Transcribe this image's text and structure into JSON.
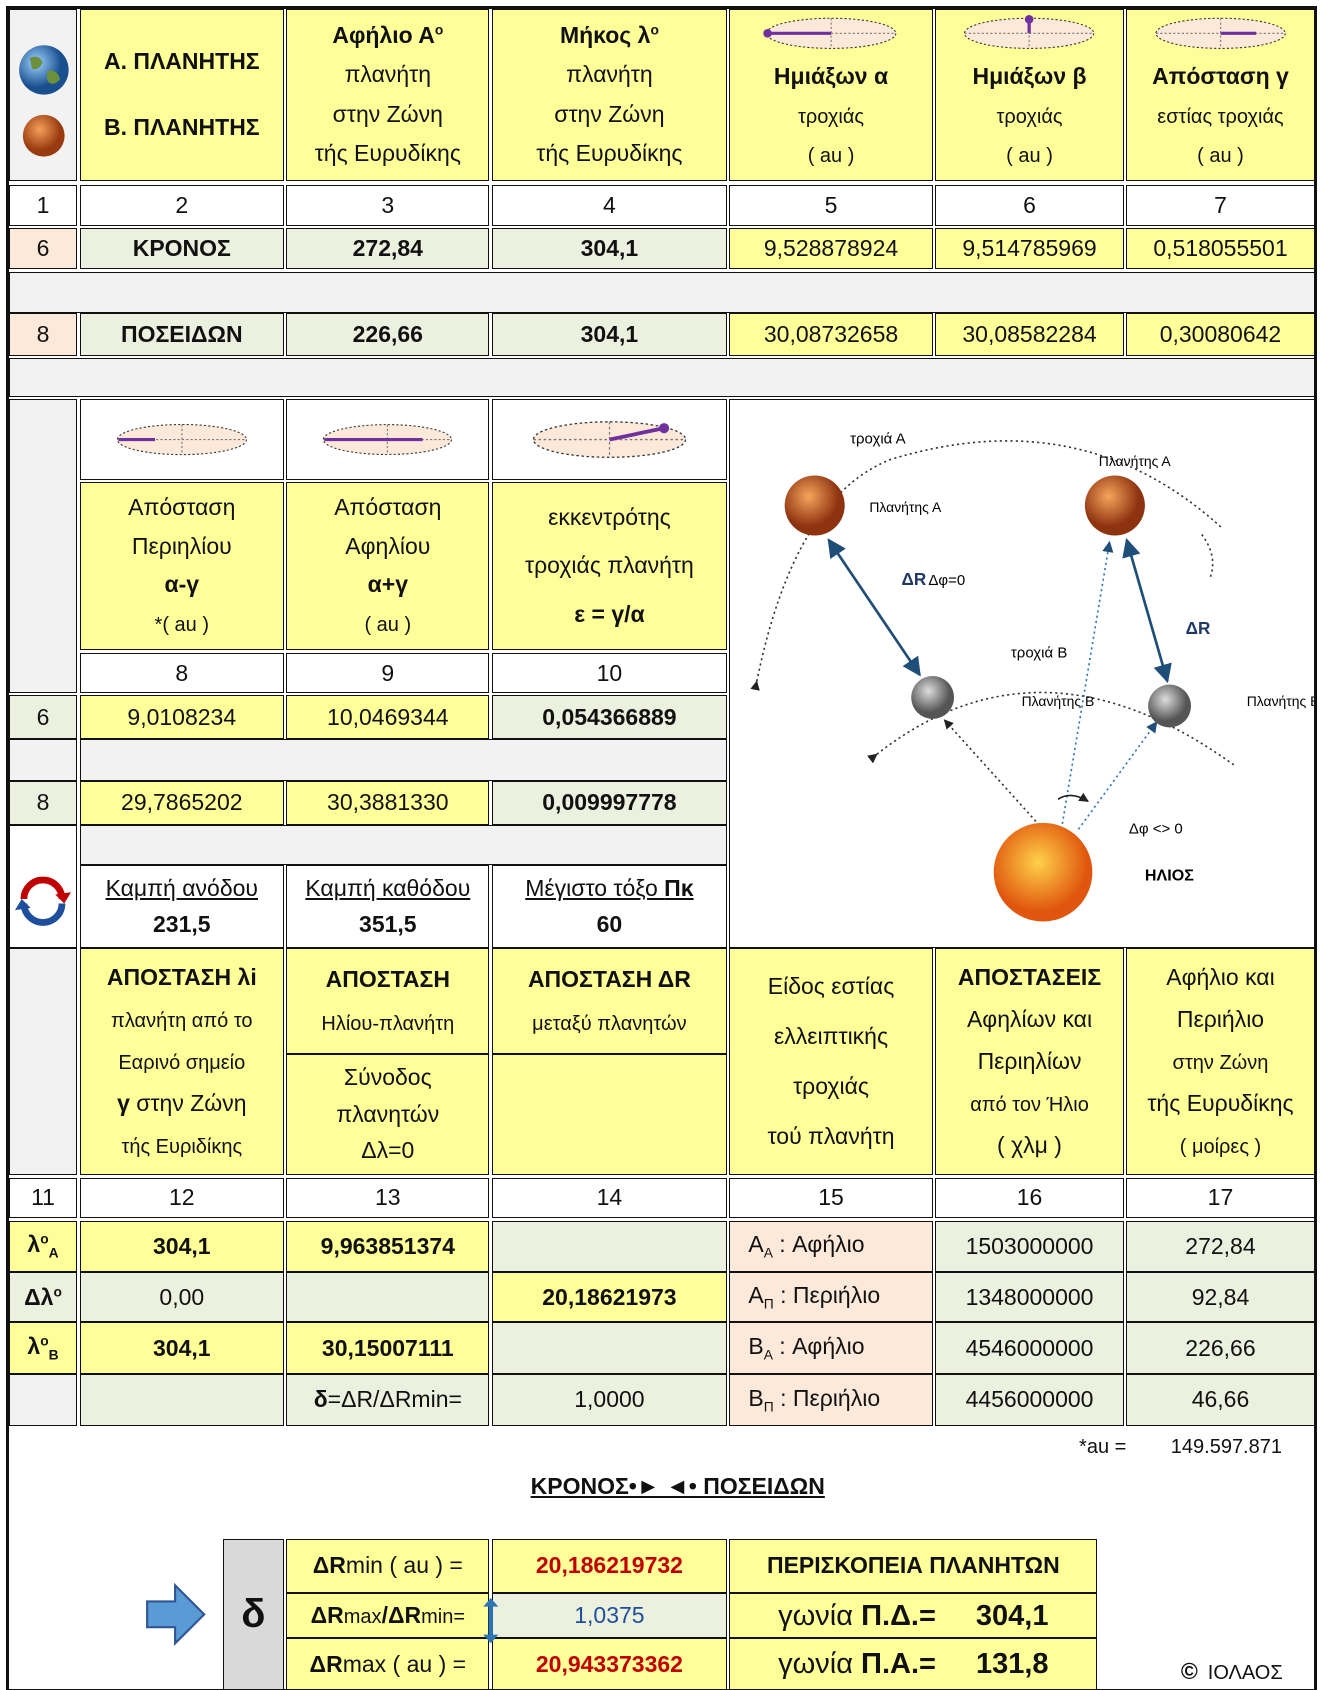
{
  "header": {
    "planet_labels": [
      "Α. ΠΛΑΝΗΤΗΣ",
      "Β. ΠΛΑΝΗΤΗΣ"
    ],
    "columns": [
      {
        "title": "Αφήλιο Α",
        "sup": "o",
        "lines": [
          "πλανήτη",
          "στην Ζώνη",
          "τής Ευρυδίκης"
        ]
      },
      {
        "title": "Μήκος λ",
        "sup": "o",
        "lines": [
          "πλανήτη",
          "στην Ζώνη",
          "τής Ευρυδίκης"
        ]
      },
      {
        "title": "Ημιάξων α",
        "lines": [
          "τροχιάς",
          "( au )"
        ]
      },
      {
        "title": "Ημιάξων β",
        "lines": [
          "τροχιάς",
          "( au )"
        ]
      },
      {
        "title": "Απόσταση γ",
        "lines": [
          "εστίας τροχιάς",
          "( au )"
        ]
      }
    ],
    "column_numbers": [
      "1",
      "2",
      "3",
      "4",
      "5",
      "6",
      "7"
    ]
  },
  "planets": [
    {
      "index": "6",
      "name": "ΚΡΟΝΟΣ",
      "values": [
        "272,84",
        "304,1",
        "9,528878924",
        "9,514785969",
        "0,518055501"
      ]
    },
    {
      "index": "8",
      "name": "ΠΟΣΕΙΔΩΝ",
      "values": [
        "226,66",
        "304,1",
        "30,08732658",
        "30,08582284",
        "0,30080642"
      ]
    }
  ],
  "orbit": {
    "columns": [
      [
        "Απόσταση",
        "Περιηλίου",
        "α-γ",
        "*( au )"
      ],
      [
        "Απόσταση",
        "Αφηλίου",
        "α+γ",
        "( au )"
      ],
      [
        "εκκεντρότης",
        "τροχιάς πλανήτη",
        "ε = γ/α"
      ]
    ],
    "column_numbers": [
      "8",
      "9",
      "10"
    ],
    "rows": [
      {
        "index": "6",
        "values": [
          "9,0108234",
          "10,0469344",
          "0,054366889"
        ]
      },
      {
        "index": "8",
        "values": [
          "29,7865202",
          "30,3881330",
          "0,009997778"
        ]
      }
    ],
    "stations": [
      {
        "label": "Καμπή ανόδου",
        "value": "231,5"
      },
      {
        "label": "Καμπή καθόδου",
        "value": "351,5"
      },
      {
        "label": "Μέγιστο τόξο ",
        "label_bold": "Πκ",
        "value": "60"
      }
    ]
  },
  "diagram": {
    "orbit_a": "τροχιά Α",
    "planet_a_1": "Πλανήτης Α",
    "planet_a_2": "Πλανήτης Α",
    "delta_r_1": "ΔR",
    "delta_phi_zero": "Δφ=0",
    "orbit_b": "τροχιά Β",
    "delta_r_2": "ΔR",
    "planet_b_1": "Πλανήτης Β",
    "planet_b_2": "Πλανήτης Β",
    "delta_phi_nonzero": "Δφ <> 0",
    "sun": "ΗΛΙΟΣ"
  },
  "distances": {
    "columns": [
      [
        "ΑΠΟΣΤΑΣΗ λi",
        "πλανήτη από το",
        "Εαρινό σημείο",
        "γ",
        " στην Ζώνη",
        "τής Ευριδίκης"
      ],
      [
        "ΑΠΟΣΤΑΣΗ",
        "Ηλίου-πλανήτη",
        "Σύνοδος",
        "πλανητών",
        "Δλ=0"
      ],
      [
        "ΑΠΟΣΤΑΣΗ ΔR",
        "μεταξύ πλανητών"
      ],
      [
        "Είδος εστίας",
        "ελλειπτικής",
        "τροχιάς",
        "τού πλανήτη"
      ],
      [
        "ΑΠΟΣΤΑΣΕΙΣ",
        "Αφηλίων και",
        "Περιηλίων",
        "από τον Ήλιο",
        "( χλμ )"
      ],
      [
        "Αφήλιο και",
        "Περιήλιο",
        "στην Ζώνη",
        "τής Ευρυδίκης",
        "( μοίρες )"
      ]
    ],
    "column_numbers": [
      "11",
      "12",
      "13",
      "14",
      "15",
      "16",
      "17"
    ],
    "rows": [
      {
        "label": [
          "λ",
          "o",
          "A"
        ],
        "longitude": "304,1",
        "sun_distance": "9,963851374",
        "focus": [
          "A",
          "A",
          " : Αφήλιο"
        ],
        "km": "1503000000",
        "degrees": "272,84"
      },
      {
        "label": [
          "Δλ",
          "o"
        ],
        "longitude": "0,00",
        "planet_distance": "20,18621973",
        "focus": [
          "A",
          "Π",
          " : Περιήλιο"
        ],
        "km": "1348000000",
        "degrees": "92,84"
      },
      {
        "label": [
          "λ",
          "o",
          "B"
        ],
        "longitude": "304,1",
        "sun_distance": "30,15007111",
        "focus": [
          "B",
          "A",
          " : Αφήλιο"
        ],
        "km": "4546000000",
        "degrees": "226,66"
      },
      {
        "ratio": [
          "δ",
          "=ΔR/ΔRmin="
        ],
        "ratio_value": "1,0000",
        "focus": [
          "B",
          "Π",
          " : Περιήλιο"
        ],
        "km": "4456000000",
        "degrees": "46,66"
      }
    ]
  },
  "footer": {
    "au_label": "*au =",
    "au_value": "149.597.871",
    "title": "ΚΡΟΝΟΣ•► ◄• ΠΟΣΕΙΔΩΝ",
    "delta": "δ",
    "results": [
      {
        "label": [
          "ΔR",
          "min ( au ) ="
        ],
        "value": "20,186219732"
      },
      {
        "label": [
          "ΔR",
          "max",
          "/ΔR",
          "min="
        ],
        "value": "1,0375"
      },
      {
        "label": [
          "ΔR",
          "max ( au ) ="
        ],
        "value": "20,943373362"
      }
    ],
    "periscope": {
      "title": "ΠΕΡΙΣΚΟΠΕΙΑ ΠΛΑΝΗΤΩΝ",
      "rows": [
        {
          "label": [
            "γωνία ",
            "Π.Δ.="
          ],
          "value": "304,1"
        },
        {
          "label": [
            "γωνία ",
            "Π.Α.="
          ],
          "value": "131,8"
        }
      ]
    },
    "copyright": [
      "©",
      "ΙΟΛΑΟΣ"
    ]
  }
}
